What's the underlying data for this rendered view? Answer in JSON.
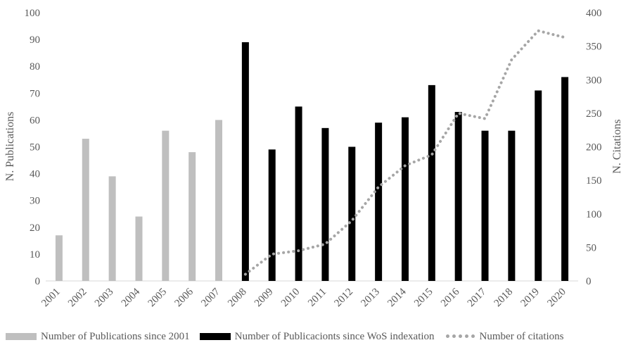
{
  "chart_data": {
    "type": "bar",
    "categories": [
      "2001",
      "2002",
      "2003",
      "2004",
      "2005",
      "2006",
      "2007",
      "2008",
      "2009",
      "2010",
      "2011",
      "2012",
      "2013",
      "2014",
      "2015",
      "2016",
      "2017",
      "2018",
      "2019",
      "2020"
    ],
    "series": [
      {
        "name": "Number of Publications since 2001",
        "type": "bar",
        "axis": "left",
        "color": "#bfbfbf",
        "values": [
          17,
          53,
          39,
          24,
          56,
          48,
          60,
          null,
          null,
          null,
          null,
          null,
          null,
          null,
          null,
          null,
          null,
          null,
          null,
          null
        ]
      },
      {
        "name": "Number of Publicacionts since WoS indexation",
        "type": "bar",
        "axis": "left",
        "color": "#000000",
        "values": [
          null,
          null,
          null,
          null,
          null,
          null,
          null,
          89,
          49,
          65,
          57,
          50,
          59,
          61,
          73,
          63,
          56,
          56,
          71,
          76
        ]
      },
      {
        "name": "Number of citations",
        "type": "line",
        "style": "dotted",
        "axis": "right",
        "color": "#a6a6a6",
        "values": [
          null,
          null,
          null,
          null,
          null,
          null,
          null,
          10,
          40,
          45,
          55,
          90,
          140,
          172,
          188,
          250,
          242,
          330,
          373,
          363
        ]
      }
    ],
    "ylabel": "N. Publications",
    "y2label": "N. Citations",
    "ylim": [
      0,
      100
    ],
    "y2lim": [
      0,
      400
    ],
    "yticks": [
      "0",
      "10",
      "20",
      "30",
      "40",
      "50",
      "60",
      "70",
      "80",
      "90",
      "100"
    ],
    "y2ticks": [
      "0",
      "50",
      "100",
      "150",
      "200",
      "250",
      "300",
      "350",
      "400"
    ],
    "grid": false,
    "legend_position": "bottom"
  }
}
